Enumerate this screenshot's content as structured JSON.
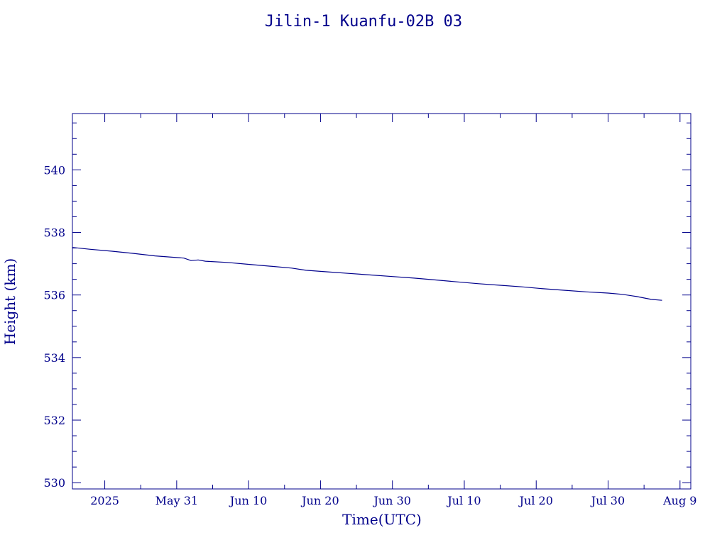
{
  "chart_data": {
    "type": "line",
    "title": "Jilin-1 Kuanfu-02B 03",
    "xlabel": "Time(UTC)",
    "ylabel": "Height (km)",
    "ylim": [
      529.8,
      541.8
    ],
    "xlim": [
      "2025-05-16T12:00",
      "2025-08-10T12:00"
    ],
    "y_major_ticks": [
      530,
      532,
      534,
      536,
      538,
      540
    ],
    "y_tick_labels": [
      "530",
      "532",
      "534",
      "536",
      "538",
      "540"
    ],
    "x_ticks": [
      {
        "date": "2025-05-21",
        "label": "2025"
      },
      {
        "date": "2025-05-31",
        "label": "May 31"
      },
      {
        "date": "2025-06-10",
        "label": "Jun 10"
      },
      {
        "date": "2025-06-20",
        "label": "Jun 20"
      },
      {
        "date": "2025-06-30",
        "label": "Jun 30"
      },
      {
        "date": "2025-07-10",
        "label": "Jul 10"
      },
      {
        "date": "2025-07-20",
        "label": "Jul 20"
      },
      {
        "date": "2025-07-30",
        "label": "Jul 30"
      },
      {
        "date": "2025-08-09",
        "label": "Aug  9"
      }
    ],
    "grid": false,
    "series": [
      {
        "color": "#00008b",
        "points": [
          [
            "2025-05-16T12:00",
            537.52
          ],
          [
            "2025-05-19T00:00",
            537.46
          ],
          [
            "2025-05-22T00:00",
            537.4
          ],
          [
            "2025-05-25T00:00",
            537.33
          ],
          [
            "2025-05-28T00:00",
            537.25
          ],
          [
            "2025-06-01T00:00",
            537.18
          ],
          [
            "2025-06-02T00:00",
            537.1
          ],
          [
            "2025-06-03T00:00",
            537.12
          ],
          [
            "2025-06-04T00:00",
            537.08
          ],
          [
            "2025-06-07T00:00",
            537.04
          ],
          [
            "2025-06-10T00:00",
            536.98
          ],
          [
            "2025-06-13T00:00",
            536.92
          ],
          [
            "2025-06-16T00:00",
            536.86
          ],
          [
            "2025-06-18T00:00",
            536.79
          ],
          [
            "2025-06-21T00:00",
            536.74
          ],
          [
            "2025-06-24T00:00",
            536.69
          ],
          [
            "2025-06-27T00:00",
            536.64
          ],
          [
            "2025-06-30T00:00",
            536.59
          ],
          [
            "2025-07-03T00:00",
            536.54
          ],
          [
            "2025-07-06T00:00",
            536.48
          ],
          [
            "2025-07-09T00:00",
            536.42
          ],
          [
            "2025-07-12T00:00",
            536.36
          ],
          [
            "2025-07-15T00:00",
            536.31
          ],
          [
            "2025-07-18T00:00",
            536.26
          ],
          [
            "2025-07-21T00:00",
            536.2
          ],
          [
            "2025-07-24T00:00",
            536.15
          ],
          [
            "2025-07-27T00:00",
            536.1
          ],
          [
            "2025-07-30T00:00",
            536.06
          ],
          [
            "2025-08-01T00:00",
            536.02
          ],
          [
            "2025-08-03T00:00",
            535.95
          ],
          [
            "2025-08-05T00:00",
            535.86
          ],
          [
            "2025-08-06T12:00",
            535.83
          ]
        ]
      }
    ]
  }
}
